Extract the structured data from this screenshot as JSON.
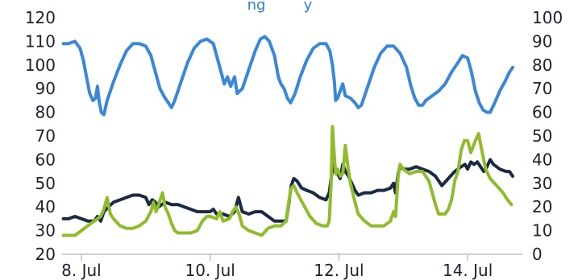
{
  "chart_data": {
    "type": "line",
    "title": "",
    "title_partial_visible": "ng",
    "title_partial_visible_2": "y",
    "xlabel": "",
    "ylabel": "",
    "y_left": {
      "ticks": [
        20,
        30,
        40,
        50,
        60,
        70,
        80,
        90,
        100,
        110,
        120
      ],
      "lim": [
        20,
        120
      ]
    },
    "y_right": {
      "ticks": [
        0,
        10,
        20,
        30,
        40,
        50,
        60,
        70,
        80,
        90,
        100
      ],
      "lim": [
        0,
        100
      ]
    },
    "x": {
      "lim": [
        7.7,
        14.85
      ],
      "ticks": [
        {
          "value": 8,
          "label": "8. Jul"
        },
        {
          "value": 10,
          "label": "10. Jul"
        },
        {
          "value": 12,
          "label": "12. Jul"
        },
        {
          "value": 14,
          "label": "14. Jul"
        }
      ]
    },
    "grid": false,
    "legend": "none",
    "series": [
      {
        "color": "#3a87d9",
        "axis": "left",
        "points": [
          [
            7.72,
            109
          ],
          [
            7.8,
            109
          ],
          [
            7.9,
            110
          ],
          [
            7.98,
            107
          ],
          [
            8.03,
            102
          ],
          [
            8.08,
            95
          ],
          [
            8.13,
            88
          ],
          [
            8.18,
            85
          ],
          [
            8.22,
            86
          ],
          [
            8.25,
            91
          ],
          [
            8.28,
            84
          ],
          [
            8.31,
            80
          ],
          [
            8.35,
            79
          ],
          [
            8.4,
            85
          ],
          [
            8.5,
            93
          ],
          [
            8.6,
            100
          ],
          [
            8.7,
            106
          ],
          [
            8.8,
            109
          ],
          [
            8.9,
            109
          ],
          [
            9.0,
            108
          ],
          [
            9.08,
            104
          ],
          [
            9.15,
            97
          ],
          [
            9.22,
            90
          ],
          [
            9.3,
            86
          ],
          [
            9.35,
            84
          ],
          [
            9.4,
            82
          ],
          [
            9.45,
            85
          ],
          [
            9.55,
            93
          ],
          [
            9.65,
            101
          ],
          [
            9.75,
            107
          ],
          [
            9.85,
            110
          ],
          [
            9.95,
            111
          ],
          [
            10.05,
            109
          ],
          [
            10.12,
            102
          ],
          [
            10.18,
            96
          ],
          [
            10.22,
            92
          ],
          [
            10.27,
            95
          ],
          [
            10.32,
            91
          ],
          [
            10.38,
            95
          ],
          [
            10.42,
            88
          ],
          [
            10.5,
            90
          ],
          [
            10.6,
            98
          ],
          [
            10.7,
            106
          ],
          [
            10.78,
            111
          ],
          [
            10.85,
            112
          ],
          [
            10.92,
            110
          ],
          [
            11.0,
            104
          ],
          [
            11.06,
            95
          ],
          [
            11.1,
            92
          ],
          [
            11.15,
            90
          ],
          [
            11.2,
            86
          ],
          [
            11.25,
            84
          ],
          [
            11.32,
            88
          ],
          [
            11.4,
            95
          ],
          [
            11.5,
            102
          ],
          [
            11.6,
            107
          ],
          [
            11.7,
            109
          ],
          [
            11.8,
            109
          ],
          [
            11.86,
            106
          ],
          [
            11.9,
            100
          ],
          [
            11.93,
            93
          ],
          [
            11.95,
            85
          ],
          [
            11.98,
            86
          ],
          [
            12.02,
            89
          ],
          [
            12.06,
            92
          ],
          [
            12.1,
            87
          ],
          [
            12.18,
            86
          ],
          [
            12.25,
            84
          ],
          [
            12.3,
            82
          ],
          [
            12.35,
            83
          ],
          [
            12.45,
            91
          ],
          [
            12.55,
            99
          ],
          [
            12.65,
            105
          ],
          [
            12.75,
            108
          ],
          [
            12.85,
            108
          ],
          [
            12.95,
            105
          ],
          [
            13.05,
            99
          ],
          [
            13.12,
            91
          ],
          [
            13.18,
            86
          ],
          [
            13.24,
            83
          ],
          [
            13.3,
            83
          ],
          [
            13.35,
            85
          ],
          [
            13.45,
            87
          ],
          [
            13.55,
            89
          ],
          [
            13.65,
            92
          ],
          [
            13.75,
            97
          ],
          [
            13.85,
            101
          ],
          [
            13.92,
            104
          ],
          [
            14.0,
            103
          ],
          [
            14.06,
            97
          ],
          [
            14.12,
            89
          ],
          [
            14.18,
            84
          ],
          [
            14.24,
            81
          ],
          [
            14.3,
            80
          ],
          [
            14.35,
            80
          ],
          [
            14.42,
            84
          ],
          [
            14.5,
            89
          ],
          [
            14.58,
            93
          ],
          [
            14.65,
            97
          ],
          [
            14.7,
            99
          ]
        ]
      },
      {
        "color": "#1b2a44",
        "axis": "left",
        "points": [
          [
            7.72,
            35
          ],
          [
            7.8,
            35
          ],
          [
            7.9,
            36
          ],
          [
            8.0,
            35
          ],
          [
            8.1,
            34
          ],
          [
            8.2,
            34
          ],
          [
            8.25,
            36
          ],
          [
            8.3,
            34
          ],
          [
            8.35,
            38
          ],
          [
            8.42,
            40
          ],
          [
            8.5,
            42
          ],
          [
            8.6,
            43
          ],
          [
            8.7,
            44
          ],
          [
            8.8,
            45
          ],
          [
            8.9,
            45
          ],
          [
            9.0,
            44
          ],
          [
            9.05,
            41
          ],
          [
            9.1,
            43
          ],
          [
            9.15,
            42
          ],
          [
            9.2,
            40
          ],
          [
            9.3,
            42
          ],
          [
            9.4,
            41
          ],
          [
            9.5,
            41
          ],
          [
            9.6,
            40
          ],
          [
            9.7,
            39
          ],
          [
            9.8,
            38
          ],
          [
            9.9,
            38
          ],
          [
            10.0,
            38
          ],
          [
            10.05,
            39
          ],
          [
            10.1,
            37
          ],
          [
            10.2,
            37
          ],
          [
            10.3,
            36
          ],
          [
            10.38,
            38
          ],
          [
            10.44,
            44
          ],
          [
            10.5,
            38
          ],
          [
            10.6,
            37
          ],
          [
            10.7,
            38
          ],
          [
            10.8,
            38
          ],
          [
            10.9,
            36
          ],
          [
            11.0,
            34
          ],
          [
            11.1,
            34
          ],
          [
            11.18,
            34
          ],
          [
            11.22,
            41
          ],
          [
            11.26,
            49
          ],
          [
            11.3,
            52
          ],
          [
            11.35,
            51
          ],
          [
            11.42,
            48
          ],
          [
            11.5,
            47
          ],
          [
            11.6,
            46
          ],
          [
            11.7,
            44
          ],
          [
            11.8,
            43
          ],
          [
            11.85,
            46
          ],
          [
            11.88,
            52
          ],
          [
            11.91,
            58
          ],
          [
            11.94,
            55
          ],
          [
            11.98,
            54
          ],
          [
            12.02,
            52
          ],
          [
            12.06,
            58
          ],
          [
            12.1,
            55
          ],
          [
            12.15,
            53
          ],
          [
            12.2,
            50
          ],
          [
            12.25,
            47
          ],
          [
            12.3,
            45
          ],
          [
            12.4,
            46
          ],
          [
            12.5,
            46
          ],
          [
            12.6,
            47
          ],
          [
            12.7,
            47
          ],
          [
            12.8,
            48
          ],
          [
            12.85,
            50
          ],
          [
            12.88,
            46
          ],
          [
            12.92,
            54
          ],
          [
            12.95,
            57
          ],
          [
            13.0,
            56
          ],
          [
            13.1,
            56
          ],
          [
            13.2,
            57
          ],
          [
            13.3,
            56
          ],
          [
            13.4,
            55
          ],
          [
            13.5,
            53
          ],
          [
            13.55,
            51
          ],
          [
            13.6,
            49
          ],
          [
            13.7,
            52
          ],
          [
            13.8,
            55
          ],
          [
            13.9,
            57
          ],
          [
            13.96,
            58
          ],
          [
            14.0,
            56
          ],
          [
            14.05,
            59
          ],
          [
            14.1,
            58
          ],
          [
            14.15,
            59
          ],
          [
            14.2,
            57
          ],
          [
            14.25,
            55
          ],
          [
            14.3,
            57
          ],
          [
            14.35,
            60
          ],
          [
            14.4,
            58
          ],
          [
            14.5,
            56
          ],
          [
            14.6,
            55
          ],
          [
            14.65,
            55
          ],
          [
            14.7,
            53
          ]
        ]
      },
      {
        "color": "#8fbc2a",
        "axis": "right",
        "points": [
          [
            7.72,
            8
          ],
          [
            7.8,
            8
          ],
          [
            7.9,
            8
          ],
          [
            8.0,
            10
          ],
          [
            8.1,
            12
          ],
          [
            8.2,
            14
          ],
          [
            8.3,
            16
          ],
          [
            8.35,
            19
          ],
          [
            8.4,
            24
          ],
          [
            8.45,
            17
          ],
          [
            8.5,
            15
          ],
          [
            8.6,
            12
          ],
          [
            8.7,
            11
          ],
          [
            8.8,
            11
          ],
          [
            8.9,
            12
          ],
          [
            9.0,
            14
          ],
          [
            9.08,
            18
          ],
          [
            9.12,
            22
          ],
          [
            9.16,
            18
          ],
          [
            9.2,
            21
          ],
          [
            9.26,
            26
          ],
          [
            9.3,
            20
          ],
          [
            9.35,
            17
          ],
          [
            9.4,
            13
          ],
          [
            9.45,
            10
          ],
          [
            9.5,
            9
          ],
          [
            9.6,
            9
          ],
          [
            9.7,
            9
          ],
          [
            9.8,
            10
          ],
          [
            9.88,
            14
          ],
          [
            9.95,
            16
          ],
          [
            10.0,
            16
          ],
          [
            10.1,
            15
          ],
          [
            10.15,
            18
          ],
          [
            10.2,
            14
          ],
          [
            10.3,
            15
          ],
          [
            10.35,
            18
          ],
          [
            10.4,
            20
          ],
          [
            10.45,
            17
          ],
          [
            10.5,
            12
          ],
          [
            10.6,
            10
          ],
          [
            10.7,
            9
          ],
          [
            10.8,
            8
          ],
          [
            10.9,
            11
          ],
          [
            11.0,
            12
          ],
          [
            11.1,
            12
          ],
          [
            11.18,
            14
          ],
          [
            11.22,
            22
          ],
          [
            11.26,
            28
          ],
          [
            11.3,
            29
          ],
          [
            11.35,
            26
          ],
          [
            11.45,
            21
          ],
          [
            11.55,
            16
          ],
          [
            11.65,
            13
          ],
          [
            11.75,
            12
          ],
          [
            11.82,
            12
          ],
          [
            11.85,
            14
          ],
          [
            11.88,
            30
          ],
          [
            11.9,
            54
          ],
          [
            11.92,
            45
          ],
          [
            11.95,
            34
          ],
          [
            11.98,
            36
          ],
          [
            12.02,
            33
          ],
          [
            12.06,
            34
          ],
          [
            12.1,
            46
          ],
          [
            12.14,
            37
          ],
          [
            12.18,
            30
          ],
          [
            12.25,
            22
          ],
          [
            12.3,
            17
          ],
          [
            12.4,
            14
          ],
          [
            12.5,
            12
          ],
          [
            12.6,
            12
          ],
          [
            12.7,
            12
          ],
          [
            12.8,
            14
          ],
          [
            12.85,
            18
          ],
          [
            12.88,
            16
          ],
          [
            12.92,
            33
          ],
          [
            12.95,
            38
          ],
          [
            13.0,
            36
          ],
          [
            13.1,
            34
          ],
          [
            13.2,
            35
          ],
          [
            13.3,
            35
          ],
          [
            13.35,
            33
          ],
          [
            13.4,
            31
          ],
          [
            13.45,
            26
          ],
          [
            13.5,
            21
          ],
          [
            13.55,
            17
          ],
          [
            13.65,
            17
          ],
          [
            13.7,
            19
          ],
          [
            13.75,
            23
          ],
          [
            13.8,
            31
          ],
          [
            13.85,
            35
          ],
          [
            13.9,
            44
          ],
          [
            13.95,
            48
          ],
          [
            14.0,
            48
          ],
          [
            14.05,
            43
          ],
          [
            14.12,
            48
          ],
          [
            14.17,
            51
          ],
          [
            14.22,
            44
          ],
          [
            14.28,
            36
          ],
          [
            14.35,
            32
          ],
          [
            14.45,
            29
          ],
          [
            14.55,
            26
          ],
          [
            14.62,
            23
          ],
          [
            14.68,
            21
          ]
        ]
      }
    ]
  }
}
